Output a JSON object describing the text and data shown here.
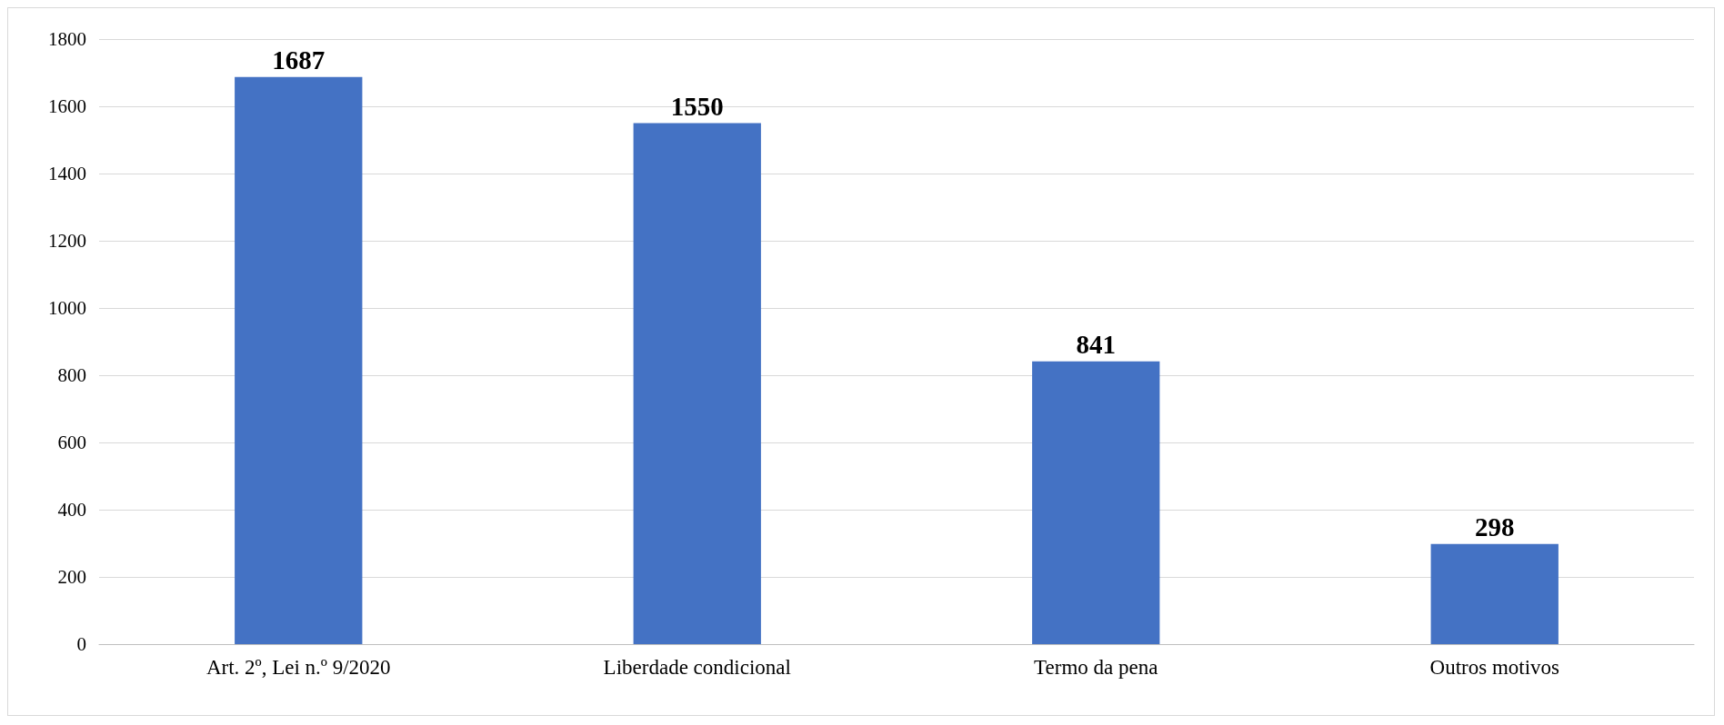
{
  "chart_data": {
    "type": "bar",
    "categories": [
      "Art. 2º, Lei n.º 9/2020",
      "Liberdade condicional",
      "Termo da pena",
      "Outros motivos"
    ],
    "values": [
      1687,
      1550,
      841,
      298
    ],
    "color": "#4472c4",
    "ylim": [
      0,
      1800
    ],
    "yticks": [
      0,
      200,
      400,
      600,
      800,
      1000,
      1200,
      1400,
      1600,
      1800
    ],
    "grid": "y",
    "data_labels": true
  }
}
